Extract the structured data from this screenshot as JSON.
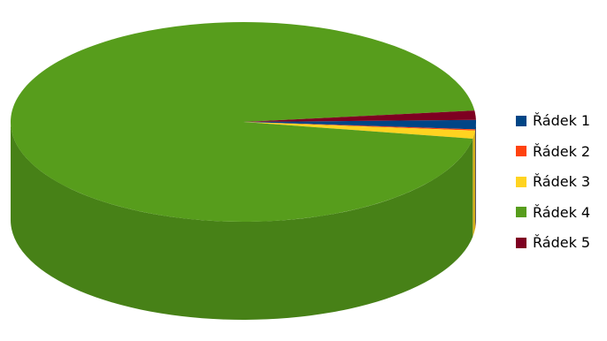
{
  "chart_data": {
    "type": "pie",
    "variant": "3d",
    "title": "",
    "legend_position": "right",
    "series": [
      {
        "name": "Řádek 1",
        "value": 1.5,
        "color": "#004586"
      },
      {
        "name": "Řádek 2",
        "value": 0.2,
        "color": "#ff420e"
      },
      {
        "name": "Řádek 3",
        "value": 1.3,
        "color": "#ffd320"
      },
      {
        "name": "Řádek 4",
        "value": 95.5,
        "color": "#579d1c"
      },
      {
        "name": "Řádek 5",
        "value": 1.5,
        "color": "#7e0021"
      }
    ]
  }
}
